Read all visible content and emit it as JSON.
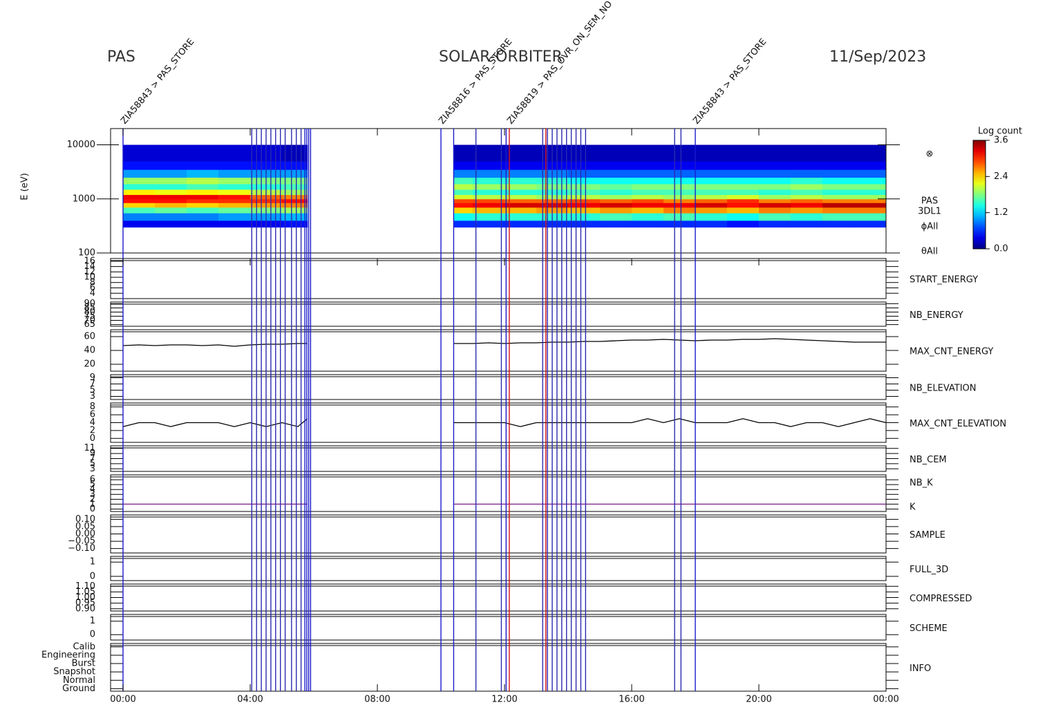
{
  "chart_data": {
    "type": "spectrogram-stack",
    "header": {
      "left": "PAS",
      "center": "SOLAR-ORBITER",
      "right": "11/Sep/2023"
    },
    "xlim": [
      0,
      24
    ],
    "xticks": [
      {
        "value": 0,
        "label": "00:00"
      },
      {
        "value": 4,
        "label": "04:00"
      },
      {
        "value": 8,
        "label": "08:00"
      },
      {
        "value": 12,
        "label": "12:00"
      },
      {
        "value": 16,
        "label": "16:00"
      },
      {
        "value": 20,
        "label": "20:00"
      },
      {
        "value": 24,
        "label": "00:00"
      }
    ],
    "events": {
      "times": [
        0.0,
        4.05,
        4.2,
        4.35,
        4.5,
        4.65,
        4.8,
        4.95,
        5.1,
        5.3,
        5.45,
        5.6,
        5.72,
        5.78,
        5.84,
        5.9,
        10.0,
        10.4,
        11.1,
        11.9,
        12.05,
        12.15,
        13.2,
        13.3,
        13.35,
        13.5,
        13.65,
        13.8,
        13.95,
        14.1,
        14.25,
        14.4,
        14.55,
        17.35,
        17.55,
        18.0
      ],
      "colors": [
        "#1a1acc",
        "#2a2ab0",
        "#2a2ab0",
        "#2a2ab0",
        "#2a2ab0",
        "#2a2ab0",
        "#2a2ab0",
        "#2a2ab0",
        "#2a2ab0",
        "#2a2ab0",
        "#2a2ab0",
        "#2a2ab0",
        "#1a1acc",
        "#1a1acc",
        "#1a1acc",
        "#1a1acc",
        "#1a1acc",
        "#1a1acc",
        "#2a2ab0",
        "#2a2ab0",
        "#1a1acc",
        "#dd1111",
        "#2a2ab0",
        "#dd1111",
        "#2a2ab0",
        "#2a2ab0",
        "#2a2ab0",
        "#2a2ab0",
        "#2a2ab0",
        "#2a2ab0",
        "#2a2ab0",
        "#2a2ab0",
        "#2a2ab0",
        "#2a2ab0",
        "#2a2ab0",
        "#1a1acc"
      ],
      "annotations": [
        {
          "time": 0.0,
          "text": "ZIA58843 > PAS_STORE",
          "color": "#1a1acc"
        },
        {
          "time": 10.0,
          "text": "ZIA58816 > PAS_STORE",
          "color": "#1a1acc"
        },
        {
          "time": 12.15,
          "text": "ZIA58819 > PAS_OVR_ON_SEM_NO",
          "color": "#dd1111"
        },
        {
          "time": 18.0,
          "text": "ZIA58843 > PAS_STORE",
          "color": "#1a1acc"
        }
      ]
    },
    "spectrogram": {
      "ylabel": "E (eV)",
      "log_scale": true,
      "ylim": [
        100,
        20000
      ],
      "yticks": [
        100,
        1000,
        10000
      ],
      "side_labels": [
        "⊗",
        "PAS",
        "3DL1",
        "ϕAll",
        "θAll"
      ],
      "colorbar": {
        "title": "Log count",
        "lim": [
          0,
          3.6
        ],
        "ticks": [
          {
            "value": 0,
            "label": "0.0"
          },
          {
            "value": 1.2,
            "label": "1.2"
          },
          {
            "value": 2.4,
            "label": "2.4"
          },
          {
            "value": 3.6,
            "label": "3.6"
          }
        ]
      },
      "time_bins": [
        0,
        1,
        2,
        3,
        4,
        5,
        5.8,
        10.4,
        11,
        12,
        13,
        14,
        15,
        16,
        17,
        18,
        19,
        20,
        21,
        22,
        23,
        24
      ],
      "energy_bins": [
        300,
        400,
        550,
        700,
        850,
        1000,
        1200,
        1500,
        1900,
        2500,
        3500,
        5000,
        10000
      ],
      "values": [
        [
          0.4,
          0.9,
          1.6,
          2.4,
          3.1,
          3.2,
          2.3,
          1.5,
          1.9,
          1.0,
          0.5,
          0.3
        ],
        [
          0.4,
          0.9,
          1.7,
          2.5,
          3.1,
          3.2,
          2.2,
          1.5,
          1.9,
          1.0,
          0.5,
          0.3
        ],
        [
          0.4,
          0.9,
          1.6,
          2.4,
          3.0,
          3.2,
          2.3,
          1.6,
          2.0,
          1.1,
          0.5,
          0.3
        ],
        [
          0.4,
          1.0,
          1.7,
          2.5,
          3.0,
          3.1,
          2.2,
          1.5,
          1.9,
          1.0,
          0.5,
          0.3
        ],
        [
          0.4,
          1.0,
          1.8,
          2.6,
          3.0,
          2.8,
          2.0,
          1.5,
          1.8,
          1.0,
          0.5,
          0.3
        ],
        [
          0.5,
          1.1,
          1.9,
          2.7,
          3.1,
          2.7,
          1.9,
          1.6,
          1.8,
          1.0,
          0.5,
          0.2
        ],
        null,
        [
          0.6,
          1.4,
          2.4,
          3.1,
          2.9,
          2.1,
          1.6,
          2.0,
          1.6,
          0.9,
          0.4,
          0.2
        ],
        [
          0.6,
          1.5,
          2.5,
          3.2,
          2.9,
          2.0,
          1.5,
          1.9,
          1.5,
          0.9,
          0.4,
          0.2
        ],
        [
          0.6,
          1.5,
          2.5,
          3.3,
          2.8,
          2.0,
          1.5,
          1.9,
          1.5,
          0.9,
          0.4,
          0.2
        ],
        [
          0.6,
          1.5,
          2.6,
          3.3,
          2.8,
          1.9,
          1.5,
          1.8,
          1.5,
          0.9,
          0.4,
          0.2
        ],
        [
          0.6,
          1.5,
          2.5,
          3.2,
          2.9,
          2.0,
          1.6,
          1.8,
          1.4,
          0.8,
          0.4,
          0.2
        ],
        [
          0.6,
          1.6,
          2.6,
          3.3,
          2.8,
          1.9,
          1.5,
          1.7,
          1.4,
          0.8,
          0.4,
          0.2
        ],
        [
          0.6,
          1.5,
          2.5,
          3.2,
          2.9,
          2.0,
          1.6,
          1.8,
          1.4,
          0.8,
          0.4,
          0.2
        ],
        [
          0.6,
          1.6,
          2.7,
          3.2,
          2.7,
          1.9,
          1.6,
          1.8,
          1.4,
          0.8,
          0.4,
          0.2
        ],
        [
          0.6,
          1.5,
          2.6,
          3.3,
          2.8,
          2.0,
          1.6,
          1.8,
          1.4,
          0.8,
          0.4,
          0.2
        ],
        [
          0.5,
          1.4,
          2.5,
          3.1,
          3.0,
          2.1,
          1.6,
          1.8,
          1.4,
          0.8,
          0.4,
          0.2
        ],
        [
          0.6,
          1.6,
          2.7,
          3.3,
          2.7,
          1.9,
          1.5,
          1.8,
          1.4,
          0.8,
          0.4,
          0.2
        ],
        [
          0.6,
          1.5,
          2.6,
          3.2,
          2.8,
          2.0,
          1.6,
          1.9,
          1.5,
          0.8,
          0.4,
          0.2
        ],
        [
          0.6,
          1.6,
          2.7,
          3.4,
          2.7,
          1.9,
          1.5,
          1.8,
          1.4,
          0.8,
          0.4,
          0.2
        ],
        [
          0.6,
          1.6,
          2.7,
          3.4,
          2.7,
          1.9,
          1.5,
          1.8,
          1.4,
          0.8,
          0.4,
          0.2
        ]
      ]
    },
    "times": [
      0,
      0.5,
      1,
      1.5,
      2,
      2.5,
      3,
      3.5,
      4,
      4.5,
      5,
      5.5,
      5.8,
      8,
      10.4,
      11,
      11.5,
      12,
      12.5,
      13,
      13.5,
      14,
      14.5,
      15,
      15.5,
      16,
      16.5,
      17,
      17.5,
      18,
      18.5,
      19,
      19.5,
      20,
      20.5,
      21,
      21.5,
      22,
      22.5,
      23,
      23.5,
      24
    ],
    "panels": [
      {
        "labels": [
          {
            "text": "START_ENERGY",
            "color": "#111111"
          }
        ],
        "ylim": [
          2,
          17
        ],
        "yticks": [
          4,
          6,
          8,
          10,
          12,
          14,
          16
        ]
      },
      {
        "labels": [
          {
            "text": "NB_ENERGY",
            "color": "#2222aa"
          }
        ],
        "ylim": [
          63,
          92
        ],
        "yticks": [
          65,
          70,
          75,
          80,
          85,
          90
        ]
      },
      {
        "labels": [
          {
            "text": "MAX_CNT_ENERGY",
            "color": "#111111"
          }
        ],
        "ylim": [
          10,
          70
        ],
        "yticks": [
          20,
          40,
          60
        ],
        "series": [
          {
            "color": "#000000",
            "values": [
              47,
              48,
              47,
              48,
              48,
              47,
              48,
              46,
              48,
              49,
              49,
              50,
              50,
              null,
              50,
              50,
              51,
              50,
              51,
              51,
              52,
              52,
              53,
              53,
              54,
              55,
              55,
              56,
              55,
              54,
              55,
              55,
              56,
              56,
              57,
              56,
              55,
              54,
              53,
              52,
              52,
              52
            ]
          }
        ]
      },
      {
        "labels": [
          {
            "text": "NB_ELEVATION",
            "color": "#2222aa"
          }
        ],
        "ylim": [
          2,
          10
        ],
        "yticks": [
          3,
          5,
          7,
          9
        ]
      },
      {
        "labels": [
          {
            "text": "MAX_CNT_ELEVATION",
            "color": "#111111"
          }
        ],
        "ylim": [
          -1,
          9
        ],
        "yticks": [
          0,
          2,
          4,
          6,
          8
        ],
        "series": [
          {
            "color": "#000000",
            "values": [
              3,
              4,
              4,
              3,
              4,
              4,
              4,
              3,
              4,
              3,
              4,
              3,
              5,
              null,
              4,
              4,
              4,
              4,
              3,
              4,
              4,
              4,
              4,
              4,
              4,
              4,
              5,
              4,
              5,
              4,
              4,
              4,
              5,
              4,
              4,
              3,
              4,
              4,
              3,
              4,
              5,
              4
            ]
          }
        ]
      },
      {
        "labels": [
          {
            "text": "NB_CEM",
            "color": "#2222aa"
          }
        ],
        "ylim": [
          2,
          12
        ],
        "yticks": [
          3,
          5,
          7,
          9,
          11
        ]
      },
      {
        "labels": [
          {
            "text": "NB_K",
            "color": "#cc1111"
          },
          {
            "text": "K",
            "color": "#2222aa"
          }
        ],
        "ylim": [
          -0.5,
          7
        ],
        "yticks": [
          0,
          1,
          2,
          3,
          4,
          5,
          6
        ],
        "series": [
          {
            "color": "#7a1a8a",
            "values": [
              1,
              1,
              1,
              1,
              1,
              1,
              1,
              1,
              1,
              1,
              1,
              1,
              1,
              null,
              1,
              1,
              1,
              1,
              1,
              1,
              1,
              1,
              1,
              1,
              1,
              1,
              1,
              1,
              1,
              1,
              1,
              1,
              1,
              1,
              1,
              1,
              1,
              1,
              1,
              1,
              1,
              1
            ]
          }
        ]
      },
      {
        "labels": [
          {
            "text": "SAMPLE",
            "color": "#2222aa"
          }
        ],
        "ylim": [
          -0.13,
          0.13
        ],
        "yticks": [
          {
            "value": -0.1,
            "label": "−0.10"
          },
          {
            "value": -0.05,
            "label": "−0.05"
          },
          {
            "value": 0,
            "label": "0.00"
          },
          {
            "value": 0.05,
            "label": "0.05"
          },
          {
            "value": 0.1,
            "label": "0.10"
          }
        ]
      },
      {
        "labels": [
          {
            "text": "FULL_3D",
            "color": "#2222aa"
          }
        ],
        "ylim": [
          -0.3,
          1.4
        ],
        "yticks": [
          0,
          1
        ]
      },
      {
        "labels": [
          {
            "text": "COMPRESSED",
            "color": "#111111"
          }
        ],
        "ylim": [
          0.88,
          1.12
        ],
        "yticks": [
          {
            "value": 0.9,
            "label": "0.90"
          },
          {
            "value": 0.95,
            "label": "0.95"
          },
          {
            "value": 1.0,
            "label": "1.00"
          },
          {
            "value": 1.05,
            "label": "1.05"
          },
          {
            "value": 1.1,
            "label": "1.10"
          }
        ]
      },
      {
        "labels": [
          {
            "text": "SCHEME",
            "color": "#111111"
          }
        ],
        "ylim": [
          -0.4,
          1.5
        ],
        "yticks": [
          0,
          1
        ]
      },
      {
        "labels": [
          {
            "text": "INFO",
            "color": "#111111"
          }
        ],
        "ylim": [
          -0.3,
          5.4
        ],
        "yticks": [
          {
            "value": 0,
            "label": "Ground"
          },
          {
            "value": 1,
            "label": "Normal"
          },
          {
            "value": 2,
            "label": "Snapshot"
          },
          {
            "value": 3,
            "label": "Burst"
          },
          {
            "value": 4,
            "label": "Engineering"
          },
          {
            "value": 5,
            "label": "Calib"
          }
        ]
      }
    ]
  }
}
